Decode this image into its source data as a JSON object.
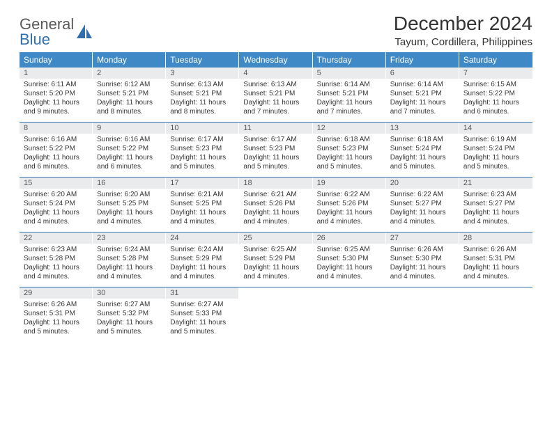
{
  "logo": {
    "gray": "General",
    "blue": "Blue"
  },
  "title": "December 2024",
  "location": "Tayum, Cordillera, Philippines",
  "headers": [
    "Sunday",
    "Monday",
    "Tuesday",
    "Wednesday",
    "Thursday",
    "Friday",
    "Saturday"
  ],
  "colors": {
    "header_bg": "#3f89c7",
    "header_text": "#ffffff",
    "sep_line": "#2f6fae",
    "daynum_bg": "#e9ebed",
    "logo_gray": "#5a5a5a",
    "logo_blue": "#2f6fae"
  },
  "weeks": [
    [
      {
        "n": "1",
        "sr": "Sunrise: 6:11 AM",
        "ss": "Sunset: 5:20 PM",
        "dl": "Daylight: 11 hours and 9 minutes."
      },
      {
        "n": "2",
        "sr": "Sunrise: 6:12 AM",
        "ss": "Sunset: 5:21 PM",
        "dl": "Daylight: 11 hours and 8 minutes."
      },
      {
        "n": "3",
        "sr": "Sunrise: 6:13 AM",
        "ss": "Sunset: 5:21 PM",
        "dl": "Daylight: 11 hours and 8 minutes."
      },
      {
        "n": "4",
        "sr": "Sunrise: 6:13 AM",
        "ss": "Sunset: 5:21 PM",
        "dl": "Daylight: 11 hours and 7 minutes."
      },
      {
        "n": "5",
        "sr": "Sunrise: 6:14 AM",
        "ss": "Sunset: 5:21 PM",
        "dl": "Daylight: 11 hours and 7 minutes."
      },
      {
        "n": "6",
        "sr": "Sunrise: 6:14 AM",
        "ss": "Sunset: 5:21 PM",
        "dl": "Daylight: 11 hours and 7 minutes."
      },
      {
        "n": "7",
        "sr": "Sunrise: 6:15 AM",
        "ss": "Sunset: 5:22 PM",
        "dl": "Daylight: 11 hours and 6 minutes."
      }
    ],
    [
      {
        "n": "8",
        "sr": "Sunrise: 6:16 AM",
        "ss": "Sunset: 5:22 PM",
        "dl": "Daylight: 11 hours and 6 minutes."
      },
      {
        "n": "9",
        "sr": "Sunrise: 6:16 AM",
        "ss": "Sunset: 5:22 PM",
        "dl": "Daylight: 11 hours and 6 minutes."
      },
      {
        "n": "10",
        "sr": "Sunrise: 6:17 AM",
        "ss": "Sunset: 5:23 PM",
        "dl": "Daylight: 11 hours and 5 minutes."
      },
      {
        "n": "11",
        "sr": "Sunrise: 6:17 AM",
        "ss": "Sunset: 5:23 PM",
        "dl": "Daylight: 11 hours and 5 minutes."
      },
      {
        "n": "12",
        "sr": "Sunrise: 6:18 AM",
        "ss": "Sunset: 5:23 PM",
        "dl": "Daylight: 11 hours and 5 minutes."
      },
      {
        "n": "13",
        "sr": "Sunrise: 6:18 AM",
        "ss": "Sunset: 5:24 PM",
        "dl": "Daylight: 11 hours and 5 minutes."
      },
      {
        "n": "14",
        "sr": "Sunrise: 6:19 AM",
        "ss": "Sunset: 5:24 PM",
        "dl": "Daylight: 11 hours and 5 minutes."
      }
    ],
    [
      {
        "n": "15",
        "sr": "Sunrise: 6:20 AM",
        "ss": "Sunset: 5:24 PM",
        "dl": "Daylight: 11 hours and 4 minutes."
      },
      {
        "n": "16",
        "sr": "Sunrise: 6:20 AM",
        "ss": "Sunset: 5:25 PM",
        "dl": "Daylight: 11 hours and 4 minutes."
      },
      {
        "n": "17",
        "sr": "Sunrise: 6:21 AM",
        "ss": "Sunset: 5:25 PM",
        "dl": "Daylight: 11 hours and 4 minutes."
      },
      {
        "n": "18",
        "sr": "Sunrise: 6:21 AM",
        "ss": "Sunset: 5:26 PM",
        "dl": "Daylight: 11 hours and 4 minutes."
      },
      {
        "n": "19",
        "sr": "Sunrise: 6:22 AM",
        "ss": "Sunset: 5:26 PM",
        "dl": "Daylight: 11 hours and 4 minutes."
      },
      {
        "n": "20",
        "sr": "Sunrise: 6:22 AM",
        "ss": "Sunset: 5:27 PM",
        "dl": "Daylight: 11 hours and 4 minutes."
      },
      {
        "n": "21",
        "sr": "Sunrise: 6:23 AM",
        "ss": "Sunset: 5:27 PM",
        "dl": "Daylight: 11 hours and 4 minutes."
      }
    ],
    [
      {
        "n": "22",
        "sr": "Sunrise: 6:23 AM",
        "ss": "Sunset: 5:28 PM",
        "dl": "Daylight: 11 hours and 4 minutes."
      },
      {
        "n": "23",
        "sr": "Sunrise: 6:24 AM",
        "ss": "Sunset: 5:28 PM",
        "dl": "Daylight: 11 hours and 4 minutes."
      },
      {
        "n": "24",
        "sr": "Sunrise: 6:24 AM",
        "ss": "Sunset: 5:29 PM",
        "dl": "Daylight: 11 hours and 4 minutes."
      },
      {
        "n": "25",
        "sr": "Sunrise: 6:25 AM",
        "ss": "Sunset: 5:29 PM",
        "dl": "Daylight: 11 hours and 4 minutes."
      },
      {
        "n": "26",
        "sr": "Sunrise: 6:25 AM",
        "ss": "Sunset: 5:30 PM",
        "dl": "Daylight: 11 hours and 4 minutes."
      },
      {
        "n": "27",
        "sr": "Sunrise: 6:26 AM",
        "ss": "Sunset: 5:30 PM",
        "dl": "Daylight: 11 hours and 4 minutes."
      },
      {
        "n": "28",
        "sr": "Sunrise: 6:26 AM",
        "ss": "Sunset: 5:31 PM",
        "dl": "Daylight: 11 hours and 4 minutes."
      }
    ],
    [
      {
        "n": "29",
        "sr": "Sunrise: 6:26 AM",
        "ss": "Sunset: 5:31 PM",
        "dl": "Daylight: 11 hours and 5 minutes."
      },
      {
        "n": "30",
        "sr": "Sunrise: 6:27 AM",
        "ss": "Sunset: 5:32 PM",
        "dl": "Daylight: 11 hours and 5 minutes."
      },
      {
        "n": "31",
        "sr": "Sunrise: 6:27 AM",
        "ss": "Sunset: 5:33 PM",
        "dl": "Daylight: 11 hours and 5 minutes."
      },
      null,
      null,
      null,
      null
    ]
  ]
}
